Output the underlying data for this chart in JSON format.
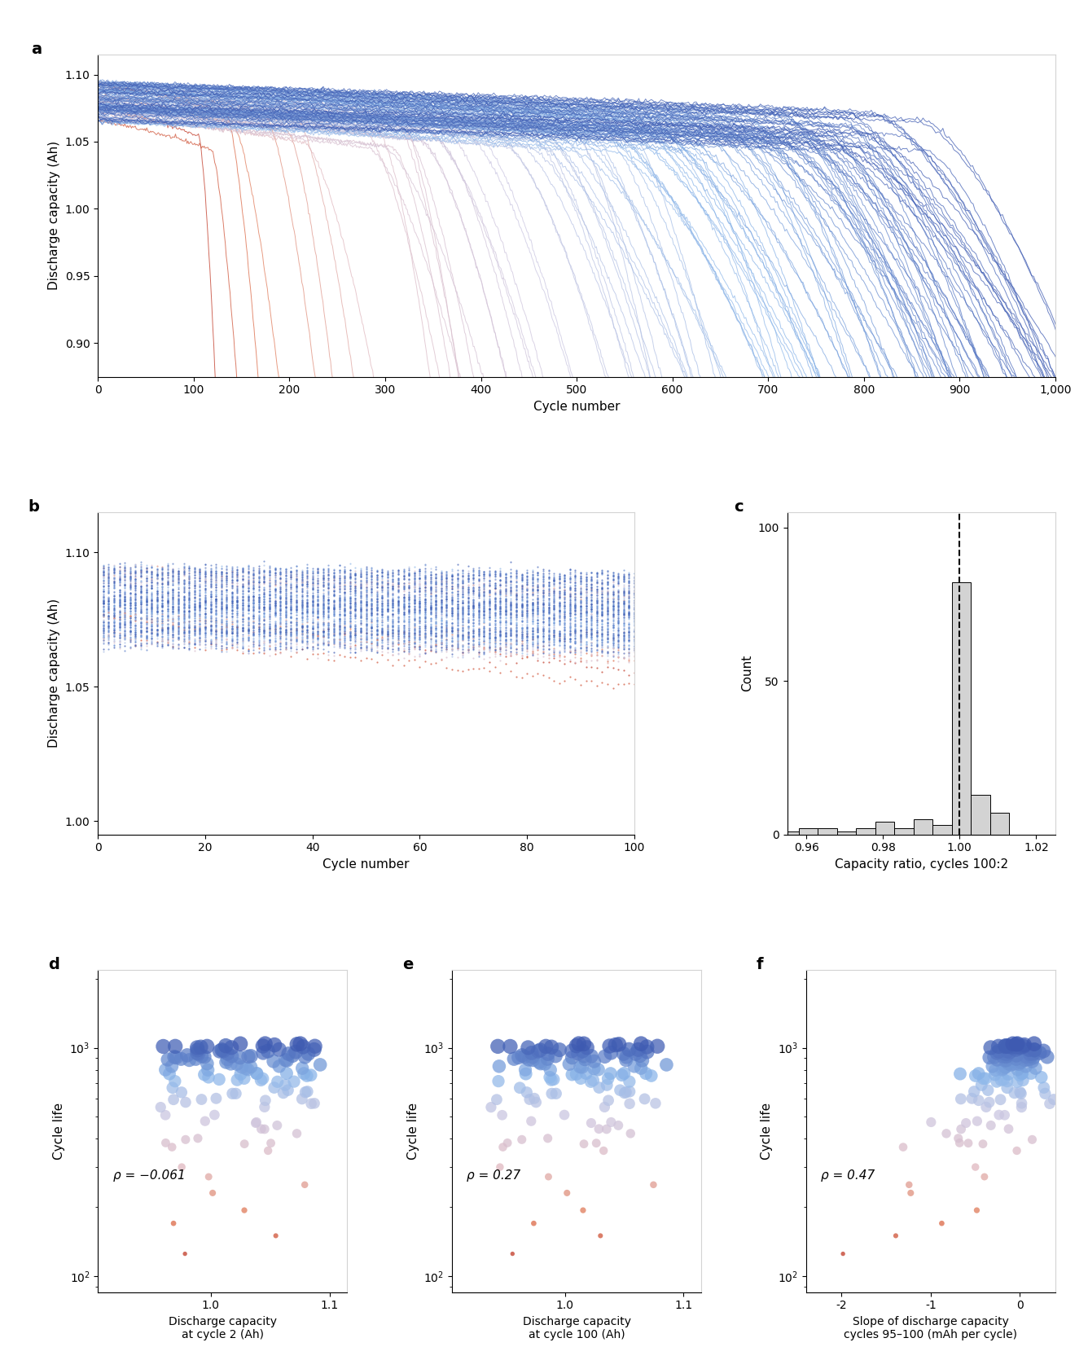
{
  "panel_a": {
    "xlim": [
      0,
      1000
    ],
    "ylim": [
      0.875,
      1.115
    ],
    "yticks": [
      0.9,
      0.95,
      1.0,
      1.05,
      1.1
    ],
    "xticks": [
      0,
      100,
      200,
      300,
      400,
      500,
      600,
      700,
      800,
      900,
      1000
    ],
    "xtick_labels": [
      "0",
      "100",
      "200",
      "300",
      "400",
      "500",
      "600",
      "700",
      "800",
      "900",
      "1,000"
    ],
    "xlabel": "Cycle number",
    "ylabel": "Discharge capacity (Ah)",
    "label": "a"
  },
  "panel_b": {
    "xlim": [
      0,
      100
    ],
    "ylim": [
      0.995,
      1.115
    ],
    "yticks": [
      1.0,
      1.05,
      1.1
    ],
    "xticks": [
      0,
      20,
      40,
      60,
      80,
      100
    ],
    "xlabel": "Cycle number",
    "ylabel": "Discharge capacity (Ah)",
    "label": "b"
  },
  "panel_c": {
    "xlim": [
      0.955,
      1.025
    ],
    "ylim": [
      0,
      105
    ],
    "yticks": [
      0,
      50,
      100
    ],
    "xticks": [
      0.96,
      0.98,
      1.0,
      1.02
    ],
    "xtick_labels": [
      "0.96",
      "0.98",
      "1.00",
      "1.02"
    ],
    "xlabel": "Capacity ratio, cycles 100:2",
    "ylabel": "Count",
    "label": "c",
    "vline": 1.0
  },
  "panel_d": {
    "xlim": [
      0.905,
      1.115
    ],
    "ylim": [
      85,
      2200
    ],
    "xticks": [
      1.0,
      1.1
    ],
    "xlabel": "Discharge capacity\nat cycle 2 (Ah)",
    "ylabel": "Cycle life",
    "label": "d",
    "rho": "ρ = −0.061"
  },
  "panel_e": {
    "xlim": [
      0.905,
      1.115
    ],
    "ylim": [
      85,
      2200
    ],
    "xticks": [
      1.0,
      1.1
    ],
    "xlabel": "Discharge capacity\nat cycle 100 (Ah)",
    "ylabel": "Cycle life",
    "label": "e",
    "rho": "ρ = 0.27"
  },
  "panel_f": {
    "xlim": [
      -2.4,
      0.4
    ],
    "ylim": [
      85,
      2200
    ],
    "xticks": [
      -2,
      -1,
      0
    ],
    "xlabel": "Slope of discharge capacity\ncycles 95–100 (mAh per cycle)",
    "ylabel": "Cycle life",
    "label": "f",
    "rho": "ρ = 0.47"
  },
  "n_batteries": 124,
  "seed": 42,
  "color_stops": {
    "t": [
      0.0,
      0.08,
      0.2,
      0.4,
      0.65,
      1.0
    ],
    "r": [
      0.7,
      0.88,
      0.88,
      0.8,
      0.55,
      0.18
    ],
    "g": [
      0.12,
      0.45,
      0.72,
      0.78,
      0.72,
      0.28
    ],
    "b": [
      0.08,
      0.3,
      0.75,
      0.88,
      0.92,
      0.65
    ]
  }
}
